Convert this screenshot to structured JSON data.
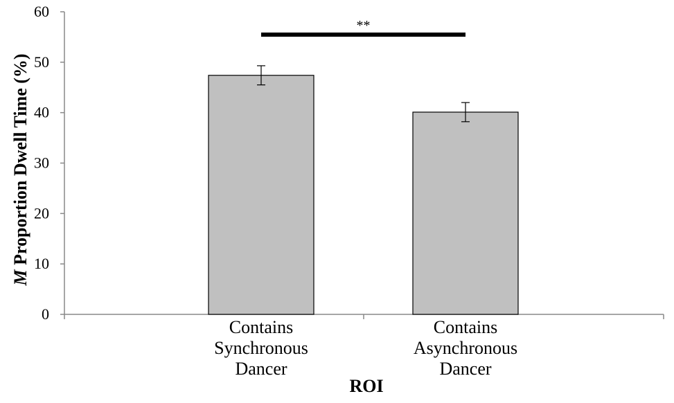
{
  "chart_data": {
    "type": "bar",
    "categories": [
      [
        "Contains",
        "Synchronous",
        "Dancer"
      ],
      [
        "Contains",
        "Asynchronous",
        "Dancer"
      ]
    ],
    "values": [
      47.4,
      40.1
    ],
    "errors": [
      1.9,
      1.9
    ],
    "ylabel_italic": "M",
    "ylabel_rest": " Proportion Dwell Time (%)",
    "xlabel": "ROI",
    "ylim": [
      0,
      60
    ],
    "yticks": [
      0,
      10,
      20,
      30,
      40,
      50,
      60
    ],
    "grid": false,
    "bar_color": "#c0c0c0",
    "significance": {
      "from": 0,
      "to": 1,
      "label": "**"
    }
  }
}
